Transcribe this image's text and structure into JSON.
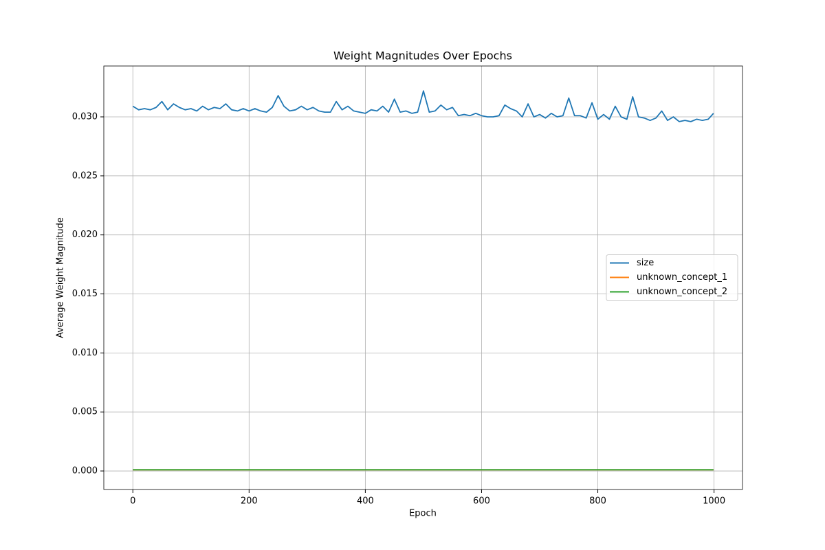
{
  "chart_data": {
    "type": "line",
    "title": "Weight Magnitudes Over Epochs",
    "xlabel": "Epoch",
    "ylabel": "Average Weight Magnitude",
    "x": [
      0,
      10,
      20,
      30,
      40,
      50,
      60,
      70,
      80,
      90,
      100,
      110,
      120,
      130,
      140,
      150,
      160,
      170,
      180,
      190,
      200,
      210,
      220,
      230,
      240,
      250,
      260,
      270,
      280,
      290,
      300,
      310,
      320,
      330,
      340,
      350,
      360,
      370,
      380,
      390,
      400,
      410,
      420,
      430,
      440,
      450,
      460,
      470,
      480,
      490,
      500,
      510,
      520,
      530,
      540,
      550,
      560,
      570,
      580,
      590,
      600,
      610,
      620,
      630,
      640,
      650,
      660,
      670,
      680,
      690,
      700,
      710,
      720,
      730,
      740,
      750,
      760,
      770,
      780,
      790,
      800,
      810,
      820,
      830,
      840,
      850,
      860,
      870,
      880,
      890,
      900,
      910,
      920,
      930,
      940,
      950,
      960,
      970,
      980,
      990,
      999
    ],
    "series": [
      {
        "name": "size",
        "color": "#1f77b4",
        "values": [
          0.0309,
          0.0306,
          0.0307,
          0.0306,
          0.0308,
          0.0313,
          0.0306,
          0.0311,
          0.0308,
          0.0306,
          0.0307,
          0.0305,
          0.0309,
          0.0306,
          0.0308,
          0.0307,
          0.0311,
          0.0306,
          0.0305,
          0.0307,
          0.0305,
          0.0307,
          0.0305,
          0.0304,
          0.0308,
          0.0318,
          0.0309,
          0.0305,
          0.0306,
          0.0309,
          0.0306,
          0.0308,
          0.0305,
          0.0304,
          0.0304,
          0.0313,
          0.0306,
          0.0309,
          0.0305,
          0.0304,
          0.0303,
          0.0306,
          0.0305,
          0.0309,
          0.0304,
          0.0315,
          0.0304,
          0.0305,
          0.0303,
          0.0304,
          0.0322,
          0.0304,
          0.0305,
          0.031,
          0.0306,
          0.0308,
          0.0301,
          0.0302,
          0.0301,
          0.0303,
          0.0301,
          0.03,
          0.03,
          0.0301,
          0.031,
          0.0307,
          0.0305,
          0.03,
          0.0311,
          0.03,
          0.0302,
          0.0299,
          0.0303,
          0.03,
          0.0301,
          0.0316,
          0.0301,
          0.0301,
          0.0299,
          0.0312,
          0.0298,
          0.0302,
          0.0298,
          0.0309,
          0.03,
          0.0298,
          0.0317,
          0.03,
          0.0299,
          0.0297,
          0.0299,
          0.0305,
          0.0297,
          0.03,
          0.0296,
          0.0297,
          0.0296,
          0.0298,
          0.0297,
          0.0298,
          0.0303
        ]
      },
      {
        "name": "unknown_concept_1",
        "color": "#ff7f0e",
        "values": [
          0.0001,
          0.0001,
          0.0001,
          0.0001,
          0.0001,
          0.0001,
          0.0001,
          0.0001,
          0.0001,
          0.0001,
          0.0001,
          0.0001,
          0.0001,
          0.0001,
          0.0001,
          0.0001,
          0.0001,
          0.0001,
          0.0001,
          0.0001,
          0.0001,
          0.0001,
          0.0001,
          0.0001,
          0.0001,
          0.0001,
          0.0001,
          0.0001,
          0.0001,
          0.0001,
          0.0001,
          0.0001,
          0.0001,
          0.0001,
          0.0001,
          0.0001,
          0.0001,
          0.0001,
          0.0001,
          0.0001,
          0.0001,
          0.0001,
          0.0001,
          0.0001,
          0.0001,
          0.0001,
          0.0001,
          0.0001,
          0.0001,
          0.0001,
          0.0001,
          0.0001,
          0.0001,
          0.0001,
          0.0001,
          0.0001,
          0.0001,
          0.0001,
          0.0001,
          0.0001,
          0.0001,
          0.0001,
          0.0001,
          0.0001,
          0.0001,
          0.0001,
          0.0001,
          0.0001,
          0.0001,
          0.0001,
          0.0001,
          0.0001,
          0.0001,
          0.0001,
          0.0001,
          0.0001,
          0.0001,
          0.0001,
          0.0001,
          0.0001,
          0.0001,
          0.0001,
          0.0001,
          0.0001,
          0.0001,
          0.0001,
          0.0001,
          0.0001,
          0.0001,
          0.0001,
          0.0001,
          0.0001,
          0.0001,
          0.0001,
          0.0001,
          0.0001,
          0.0001,
          0.0001,
          0.0001,
          0.0001,
          0.0001
        ]
      },
      {
        "name": "unknown_concept_2",
        "color": "#2ca02c",
        "values": [
          0.0001,
          0.0001,
          0.0001,
          0.0001,
          0.0001,
          0.0001,
          0.0001,
          0.0001,
          0.0001,
          0.0001,
          0.0001,
          0.0001,
          0.0001,
          0.0001,
          0.0001,
          0.0001,
          0.0001,
          0.0001,
          0.0001,
          0.0001,
          0.0001,
          0.0001,
          0.0001,
          0.0001,
          0.0001,
          0.0001,
          0.0001,
          0.0001,
          0.0001,
          0.0001,
          0.0001,
          0.0001,
          0.0001,
          0.0001,
          0.0001,
          0.0001,
          0.0001,
          0.0001,
          0.0001,
          0.0001,
          0.0001,
          0.0001,
          0.0001,
          0.0001,
          0.0001,
          0.0001,
          0.0001,
          0.0001,
          0.0001,
          0.0001,
          0.0001,
          0.0001,
          0.0001,
          0.0001,
          0.0001,
          0.0001,
          0.0001,
          0.0001,
          0.0001,
          0.0001,
          0.0001,
          0.0001,
          0.0001,
          0.0001,
          0.0001,
          0.0001,
          0.0001,
          0.0001,
          0.0001,
          0.0001,
          0.0001,
          0.0001,
          0.0001,
          0.0001,
          0.0001,
          0.0001,
          0.0001,
          0.0001,
          0.0001,
          0.0001,
          0.0001,
          0.0001,
          0.0001,
          0.0001,
          0.0001,
          0.0001,
          0.0001,
          0.0001,
          0.0001,
          0.0001,
          0.0001,
          0.0001,
          0.0001,
          0.0001,
          0.0001,
          0.0001,
          0.0001,
          0.0001,
          0.0001,
          0.0001,
          0.0001
        ]
      }
    ],
    "xlim": [
      -49.95,
      1048.95
    ],
    "xticks": [
      0,
      200,
      400,
      600,
      800,
      1000
    ],
    "ylim": [
      -0.00157,
      0.03431
    ],
    "yticks": [
      {
        "value": 0,
        "label": "0.000"
      },
      {
        "value": 0.005,
        "label": "0.005"
      },
      {
        "value": 0.01,
        "label": "0.010"
      },
      {
        "value": 0.015,
        "label": "0.015"
      },
      {
        "value": 0.02,
        "label": "0.020"
      },
      {
        "value": 0.025,
        "label": "0.025"
      },
      {
        "value": 0.03,
        "label": "0.030"
      }
    ],
    "grid": true,
    "legend": "center right"
  }
}
